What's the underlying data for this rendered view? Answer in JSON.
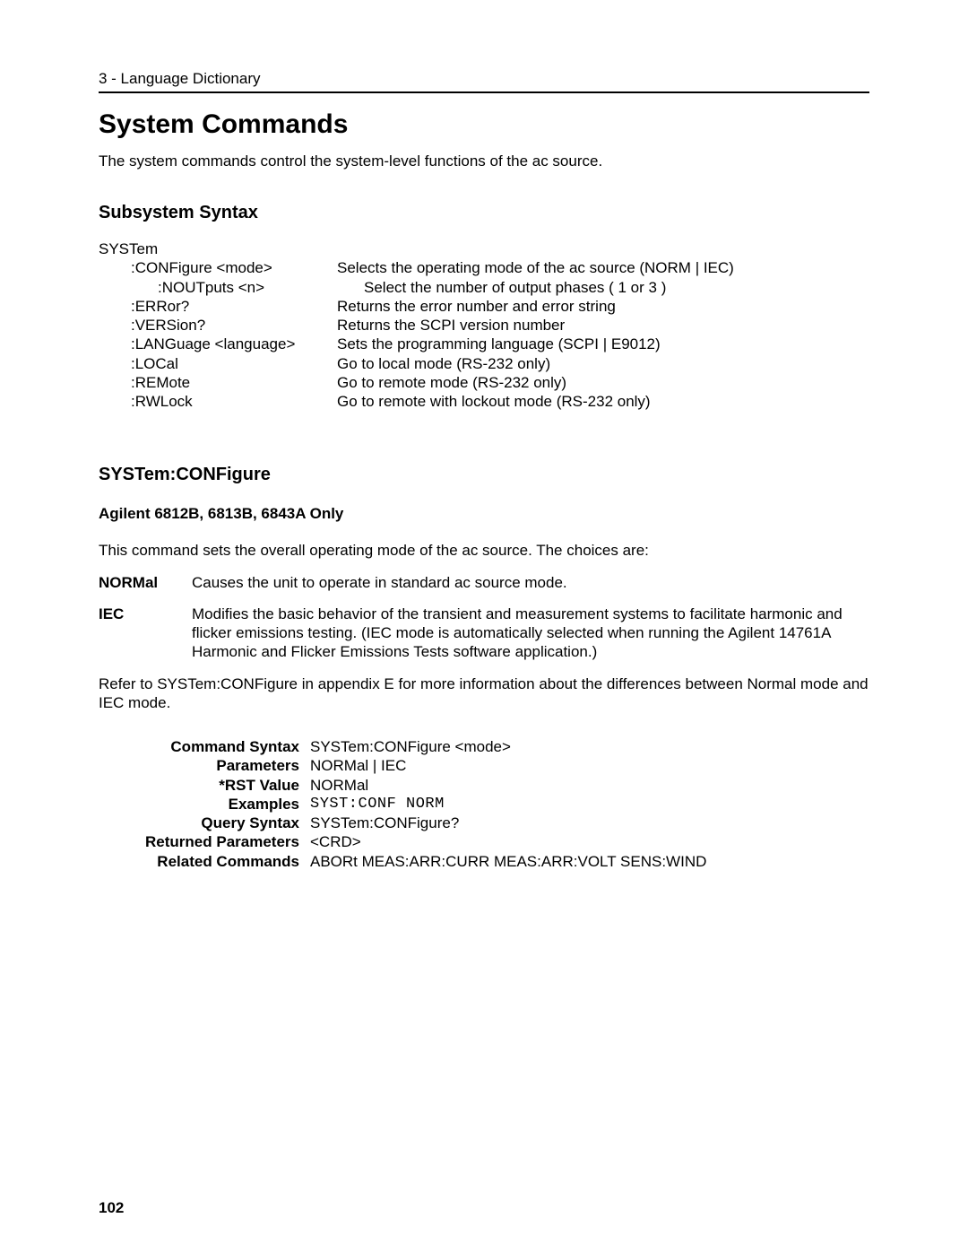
{
  "header": "3 - Language Dictionary",
  "title": "System Commands",
  "intro": "The system commands control the system-level functions of the ac source.",
  "subsystem": {
    "heading": "Subsystem Syntax",
    "root": "SYSTem",
    "rows": [
      {
        "cmd": ":CONFigure <mode>",
        "nested": false,
        "desc": "Selects the operating mode of the ac source (NORM | IEC)"
      },
      {
        "cmd": ":NOUTputs <n>",
        "nested": true,
        "desc": "Select the number of output phases ( 1 or 3 )"
      },
      {
        "cmd": ":ERRor?",
        "nested": false,
        "desc": "Returns the error number and error string"
      },
      {
        "cmd": ":VERSion?",
        "nested": false,
        "desc": "Returns the SCPI version number"
      },
      {
        "cmd": ":LANGuage <language>",
        "nested": false,
        "desc": "Sets the programming language (SCPI | E9012)"
      },
      {
        "cmd": ":LOCal",
        "nested": false,
        "desc": "Go to local mode (RS-232 only)"
      },
      {
        "cmd": ":REMote",
        "nested": false,
        "desc": "Go to remote mode (RS-232 only)"
      },
      {
        "cmd": ":RWLock",
        "nested": false,
        "desc": "Go to remote with lockout mode (RS-232 only)"
      }
    ]
  },
  "command": {
    "heading": "SYSTem:CONFigure",
    "models": "Agilent 6812B, 6813B, 6843A Only",
    "lead": "This command sets the overall operating mode of the ac source. The choices are:",
    "defs": [
      {
        "term": "NORMal",
        "desc": "Causes the unit to operate in standard ac source mode."
      },
      {
        "term": "IEC",
        "desc": "Modifies the basic behavior of the transient and measurement systems to facilitate harmonic and flicker emissions testing. (IEC mode is automatically selected when running the Agilent 14761A Harmonic and Flicker Emissions Tests software application.)"
      }
    ],
    "note": "Refer to SYSTem:CONFigure in appendix E for more information about the differences between Normal mode and IEC mode.",
    "spec": {
      "command_syntax_label": "Command Syntax",
      "command_syntax": "SYSTem:CONFigure  <mode>",
      "parameters_label": "Parameters",
      "parameters": "NORMal | IEC",
      "rst_label": "*RST Value",
      "rst": "NORMal",
      "examples_label": "Examples",
      "examples": "SYST:CONF  NORM",
      "query_label": "Query Syntax",
      "query": "SYSTem:CONFigure?",
      "returned_label": "Returned Parameters",
      "returned": "<CRD>",
      "related_label": "Related Commands",
      "related": "ABORt  MEAS:ARR:CURR  MEAS:ARR:VOLT  SENS:WIND"
    }
  },
  "page_number": "102"
}
